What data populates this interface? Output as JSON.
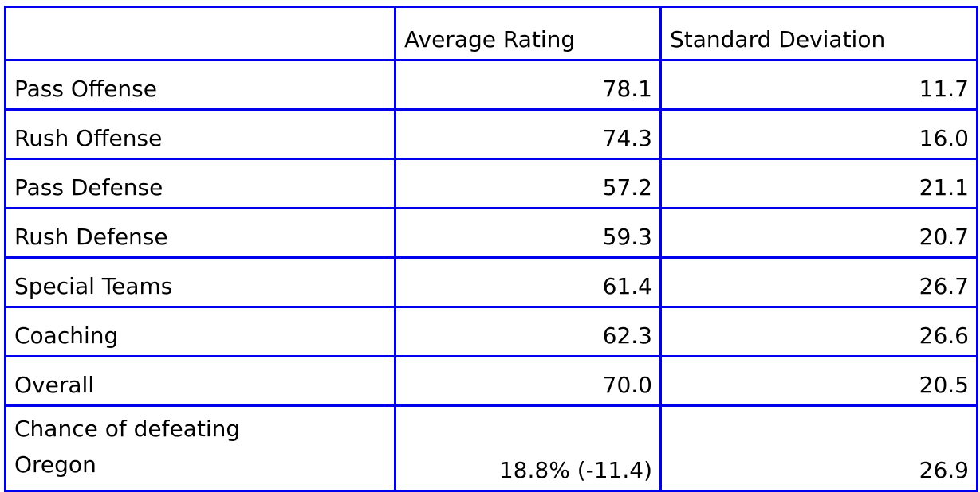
{
  "style": {
    "border_color": "#0000EE",
    "text_color": "#000000",
    "background_color": "#FFFFFF"
  },
  "chart_data": {
    "type": "table",
    "columns": [
      "",
      "Average Rating",
      "Standard Deviation"
    ],
    "rows": [
      {
        "category": "Pass Offense",
        "average_rating": "78.1",
        "standard_deviation": "11.7"
      },
      {
        "category": "Rush Offense",
        "average_rating": "74.3",
        "standard_deviation": "16.0"
      },
      {
        "category": "Pass Defense",
        "average_rating": "57.2",
        "standard_deviation": "21.1"
      },
      {
        "category": "Rush Defense",
        "average_rating": "59.3",
        "standard_deviation": "20.7"
      },
      {
        "category": "Special Teams",
        "average_rating": "61.4",
        "standard_deviation": "26.7"
      },
      {
        "category": "Coaching",
        "average_rating": "62.3",
        "standard_deviation": "26.6"
      },
      {
        "category": "Overall",
        "average_rating": "70.0",
        "standard_deviation": "20.5"
      },
      {
        "category": "Chance of defeating Oregon",
        "average_rating": "18.8% (-11.4)",
        "standard_deviation": "26.9"
      }
    ]
  }
}
